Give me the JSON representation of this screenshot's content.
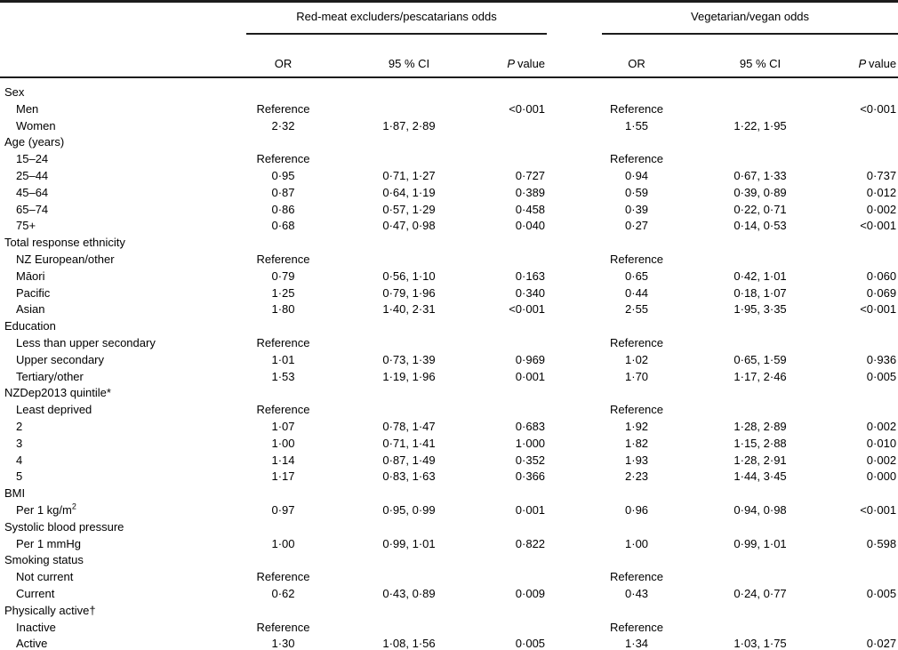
{
  "page": {
    "background": "#ffffff",
    "text_color": "#000000",
    "rule_color": "#1c1c1c"
  },
  "table": {
    "groups": [
      {
        "label": "Red-meat excluders/pescatarians odds"
      },
      {
        "label": "Vegetarian/vegan odds"
      }
    ],
    "columns": {
      "or": "OR",
      "ci": "95 % CI",
      "p_italic": "P",
      "p_rest": "value"
    },
    "rows": [
      {
        "type": "category",
        "label": "Sex"
      },
      {
        "type": "data",
        "label": "Men",
        "g1": {
          "or": "Reference",
          "ci": "",
          "p": "<0·001"
        },
        "g2": {
          "or": "Reference",
          "ci": "",
          "p": "<0·001"
        }
      },
      {
        "type": "data",
        "label": "Women",
        "g1": {
          "or": "2·32",
          "ci": "1·87, 2·89",
          "p": ""
        },
        "g2": {
          "or": "1·55",
          "ci": "1·22, 1·95",
          "p": ""
        }
      },
      {
        "type": "category",
        "label": "Age (years)"
      },
      {
        "type": "data",
        "label": "15–24",
        "g1": {
          "or": "Reference",
          "ci": "",
          "p": ""
        },
        "g2": {
          "or": "Reference",
          "ci": "",
          "p": ""
        }
      },
      {
        "type": "data",
        "label": "25–44",
        "g1": {
          "or": "0·95",
          "ci": "0·71, 1·27",
          "p": "0·727"
        },
        "g2": {
          "or": "0·94",
          "ci": "0·67, 1·33",
          "p": "0·737"
        }
      },
      {
        "type": "data",
        "label": "45–64",
        "g1": {
          "or": "0·87",
          "ci": "0·64, 1·19",
          "p": "0·389"
        },
        "g2": {
          "or": "0·59",
          "ci": "0·39, 0·89",
          "p": "0·012"
        }
      },
      {
        "type": "data",
        "label": "65–74",
        "g1": {
          "or": "0·86",
          "ci": "0·57, 1·29",
          "p": "0·458"
        },
        "g2": {
          "or": "0·39",
          "ci": "0·22, 0·71",
          "p": "0·002"
        }
      },
      {
        "type": "data",
        "label": "75+",
        "g1": {
          "or": "0·68",
          "ci": "0·47, 0·98",
          "p": "0·040"
        },
        "g2": {
          "or": "0·27",
          "ci": "0·14, 0·53",
          "p": "<0·001"
        }
      },
      {
        "type": "category",
        "label": "Total response ethnicity"
      },
      {
        "type": "data",
        "label": "NZ European/other",
        "g1": {
          "or": "Reference",
          "ci": "",
          "p": ""
        },
        "g2": {
          "or": "Reference",
          "ci": "",
          "p": ""
        }
      },
      {
        "type": "data",
        "label": "Māori",
        "g1": {
          "or": "0·79",
          "ci": "0·56, 1·10",
          "p": "0·163"
        },
        "g2": {
          "or": "0·65",
          "ci": "0·42, 1·01",
          "p": "0·060"
        }
      },
      {
        "type": "data",
        "label": "Pacific",
        "g1": {
          "or": "1·25",
          "ci": "0·79, 1·96",
          "p": "0·340"
        },
        "g2": {
          "or": "0·44",
          "ci": "0·18, 1·07",
          "p": "0·069"
        }
      },
      {
        "type": "data",
        "label": "Asian",
        "g1": {
          "or": "1·80",
          "ci": "1·40, 2·31",
          "p": "<0·001"
        },
        "g2": {
          "or": "2·55",
          "ci": "1·95, 3·35",
          "p": "<0·001"
        }
      },
      {
        "type": "category",
        "label": "Education"
      },
      {
        "type": "data",
        "label": "Less than upper secondary",
        "g1": {
          "or": "Reference",
          "ci": "",
          "p": ""
        },
        "g2": {
          "or": "Reference",
          "ci": "",
          "p": ""
        }
      },
      {
        "type": "data",
        "label": "Upper secondary",
        "g1": {
          "or": "1·01",
          "ci": "0·73, 1·39",
          "p": "0·969"
        },
        "g2": {
          "or": "1·02",
          "ci": "0·65, 1·59",
          "p": "0·936"
        }
      },
      {
        "type": "data",
        "label": "Tertiary/other",
        "g1": {
          "or": "1·53",
          "ci": "1·19, 1·96",
          "p": "0·001"
        },
        "g2": {
          "or": "1·70",
          "ci": "1·17, 2·46",
          "p": "0·005"
        }
      },
      {
        "type": "category",
        "label": "NZDep2013 quintile*"
      },
      {
        "type": "data",
        "label": "Least deprived",
        "g1": {
          "or": "Reference",
          "ci": "",
          "p": ""
        },
        "g2": {
          "or": "Reference",
          "ci": "",
          "p": ""
        }
      },
      {
        "type": "data",
        "label": "2",
        "g1": {
          "or": "1·07",
          "ci": "0·78, 1·47",
          "p": "0·683"
        },
        "g2": {
          "or": "1·92",
          "ci": "1·28, 2·89",
          "p": "0·002"
        }
      },
      {
        "type": "data",
        "label": "3",
        "g1": {
          "or": "1·00",
          "ci": "0·71, 1·41",
          "p": "1·000"
        },
        "g2": {
          "or": "1·82",
          "ci": "1·15, 2·88",
          "p": "0·010"
        }
      },
      {
        "type": "data",
        "label": "4",
        "g1": {
          "or": "1·14",
          "ci": "0·87, 1·49",
          "p": "0·352"
        },
        "g2": {
          "or": "1·93",
          "ci": "1·28, 2·91",
          "p": "0·002"
        }
      },
      {
        "type": "data",
        "label": "5",
        "g1": {
          "or": "1·17",
          "ci": "0·83, 1·63",
          "p": "0·366"
        },
        "g2": {
          "or": "2·23",
          "ci": "1·44, 3·45",
          "p": "0·000"
        }
      },
      {
        "type": "category",
        "label": "BMI"
      },
      {
        "type": "data",
        "label": "Per 1 kg/m",
        "label_sup": "2",
        "g1": {
          "or": "0·97",
          "ci": "0·95, 0·99",
          "p": "0·001"
        },
        "g2": {
          "or": "0·96",
          "ci": "0·94, 0·98",
          "p": "<0·001"
        }
      },
      {
        "type": "category",
        "label": "Systolic blood pressure"
      },
      {
        "type": "data",
        "label": "Per 1 mmHg",
        "g1": {
          "or": "1·00",
          "ci": "0·99, 1·01",
          "p": "0·822"
        },
        "g2": {
          "or": "1·00",
          "ci": "0·99, 1·01",
          "p": "0·598"
        }
      },
      {
        "type": "category",
        "label": "Smoking status"
      },
      {
        "type": "data",
        "label": "Not current",
        "g1": {
          "or": "Reference",
          "ci": "",
          "p": ""
        },
        "g2": {
          "or": "Reference",
          "ci": "",
          "p": ""
        }
      },
      {
        "type": "data",
        "label": "Current",
        "g1": {
          "or": "0·62",
          "ci": "0·43, 0·89",
          "p": "0·009"
        },
        "g2": {
          "or": "0·43",
          "ci": "0·24, 0·77",
          "p": "0·005"
        }
      },
      {
        "type": "category",
        "label": "Physically active†"
      },
      {
        "type": "data",
        "label": "Inactive",
        "g1": {
          "or": "Reference",
          "ci": "",
          "p": ""
        },
        "g2": {
          "or": "Reference",
          "ci": "",
          "p": ""
        }
      },
      {
        "type": "data",
        "label": "Active",
        "g1": {
          "or": "1·30",
          "ci": "1·08, 1·56",
          "p": "0·005"
        },
        "g2": {
          "or": "1·34",
          "ci": "1·03, 1·75",
          "p": "0·027"
        }
      }
    ]
  }
}
